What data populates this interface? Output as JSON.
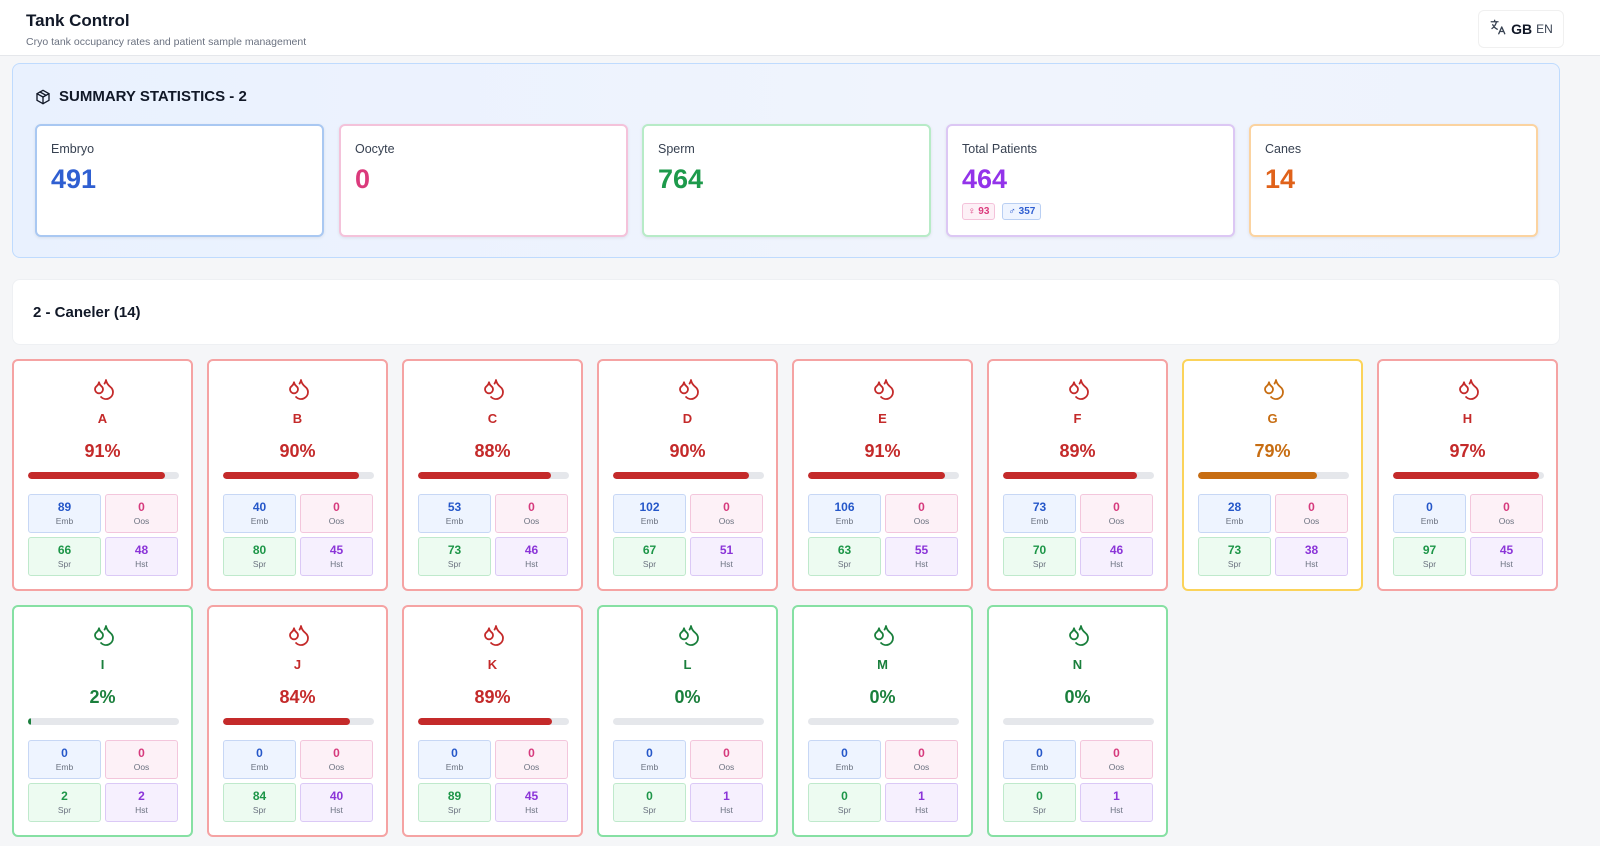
{
  "header": {
    "title": "Tank Control",
    "subtitle": "Cryo tank occupancy rates and patient sample management",
    "lang_flag": "GB",
    "lang_code": "EN"
  },
  "summary": {
    "title": "SUMMARY STATISTICS - 2",
    "stats": [
      {
        "label": "Embryo",
        "value": "491",
        "color": "#2f5fd1",
        "border": "#a9c8f2"
      },
      {
        "label": "Oocyte",
        "value": "0",
        "color": "#db3a7c",
        "border": "#f4c2da"
      },
      {
        "label": "Sperm",
        "value": "764",
        "color": "#1d9a4b",
        "border": "#b7ebc7"
      },
      {
        "label": "Total Patients",
        "value": "464",
        "color": "#9333ea",
        "border": "#dcc7f4"
      },
      {
        "label": "Canes",
        "value": "14",
        "color": "#e0621a",
        "border": "#fbd3a0"
      }
    ],
    "female_count": "♀ 93",
    "male_count": "♂ 357"
  },
  "section": {
    "title": "2 - Caneler (14)"
  },
  "cell_labels": {
    "emb": "Emb",
    "oos": "Oos",
    "spr": "Spr",
    "hst": "Hst"
  },
  "status_colors": {
    "red": "#c42a2a",
    "orange": "#c76d12",
    "green": "#1a7f3c"
  },
  "canes": [
    {
      "name": "A",
      "pct": "91%",
      "fill": 0.91,
      "status": "red",
      "emb": "89",
      "oos": "0",
      "spr": "66",
      "hst": "48"
    },
    {
      "name": "B",
      "pct": "90%",
      "fill": 0.9,
      "status": "red",
      "emb": "40",
      "oos": "0",
      "spr": "80",
      "hst": "45"
    },
    {
      "name": "C",
      "pct": "88%",
      "fill": 0.88,
      "status": "red",
      "emb": "53",
      "oos": "0",
      "spr": "73",
      "hst": "46"
    },
    {
      "name": "D",
      "pct": "90%",
      "fill": 0.9,
      "status": "red",
      "emb": "102",
      "oos": "0",
      "spr": "67",
      "hst": "51"
    },
    {
      "name": "E",
      "pct": "91%",
      "fill": 0.91,
      "status": "red",
      "emb": "106",
      "oos": "0",
      "spr": "63",
      "hst": "55"
    },
    {
      "name": "F",
      "pct": "89%",
      "fill": 0.89,
      "status": "red",
      "emb": "73",
      "oos": "0",
      "spr": "70",
      "hst": "46"
    },
    {
      "name": "G",
      "pct": "79%",
      "fill": 0.79,
      "status": "orange",
      "emb": "28",
      "oos": "0",
      "spr": "73",
      "hst": "38"
    },
    {
      "name": "H",
      "pct": "97%",
      "fill": 0.97,
      "status": "red",
      "emb": "0",
      "oos": "0",
      "spr": "97",
      "hst": "45"
    },
    {
      "name": "I",
      "pct": "2%",
      "fill": 0.02,
      "status": "green",
      "emb": "0",
      "oos": "0",
      "spr": "2",
      "hst": "2"
    },
    {
      "name": "J",
      "pct": "84%",
      "fill": 0.84,
      "status": "red",
      "emb": "0",
      "oos": "0",
      "spr": "84",
      "hst": "40"
    },
    {
      "name": "K",
      "pct": "89%",
      "fill": 0.89,
      "status": "red",
      "emb": "0",
      "oos": "0",
      "spr": "89",
      "hst": "45"
    },
    {
      "name": "L",
      "pct": "0%",
      "fill": 0,
      "status": "green",
      "emb": "0",
      "oos": "0",
      "spr": "0",
      "hst": "1"
    },
    {
      "name": "M",
      "pct": "0%",
      "fill": 0,
      "status": "green",
      "emb": "0",
      "oos": "0",
      "spr": "0",
      "hst": "1"
    },
    {
      "name": "N",
      "pct": "0%",
      "fill": 0,
      "status": "green",
      "emb": "0",
      "oos": "0",
      "spr": "0",
      "hst": "1"
    }
  ]
}
